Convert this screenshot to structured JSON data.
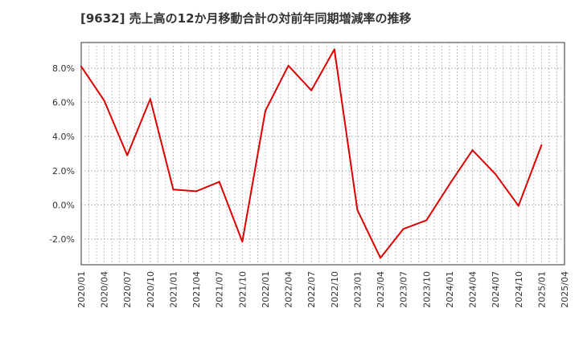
{
  "chart_data": {
    "type": "line",
    "title": "[9632]  売上高の12か月移動合計の対前年同期増減率の推移",
    "xlabel": "",
    "ylabel": "",
    "y_unit": "%",
    "ylim": [
      -3.5,
      9.5
    ],
    "y_ticks": [
      -2.0,
      0.0,
      2.0,
      4.0,
      6.0,
      8.0
    ],
    "y_tick_labels": [
      "-2.0%",
      "0.0%",
      "2.0%",
      "4.0%",
      "6.0%",
      "8.0%"
    ],
    "x_tick_labels": [
      "2020/01",
      "2020/04",
      "2020/07",
      "2020/10",
      "2021/01",
      "2021/04",
      "2021/07",
      "2021/10",
      "2022/01",
      "2022/04",
      "2022/07",
      "2022/10",
      "2023/01",
      "2023/04",
      "2023/07",
      "2023/10",
      "2024/01",
      "2024/04",
      "2024/07",
      "2024/10",
      "2025/01",
      "2025/04"
    ],
    "grid": true,
    "series": [
      {
        "name": "対前年同期増減率",
        "color": "#dd0000",
        "values": [
          8.1,
          6.1,
          2.9,
          6.2,
          0.9,
          0.8,
          1.35,
          -2.15,
          5.5,
          8.15,
          6.7,
          9.1,
          -0.3,
          -3.1,
          -1.4,
          -0.9,
          1.2,
          3.2,
          1.8,
          -0.05,
          3.5
        ]
      }
    ]
  }
}
